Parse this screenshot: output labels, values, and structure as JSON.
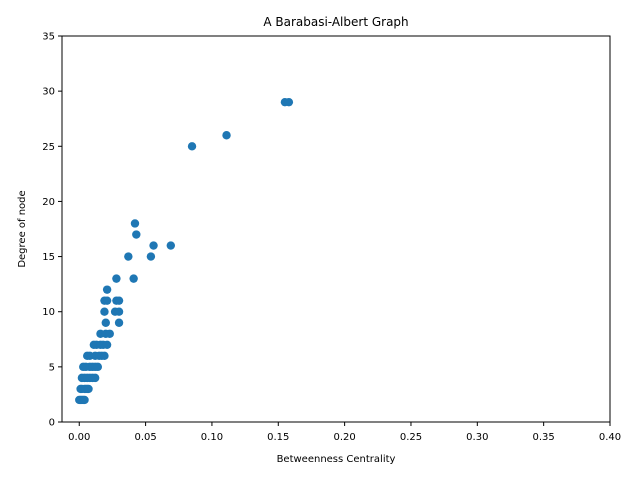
{
  "chart_data": {
    "type": "scatter",
    "title": "A Barabasi-Albert Graph",
    "xlabel": "Betweenness Centrality",
    "ylabel": "Degree of node",
    "xlim": [
      -0.013,
      0.4
    ],
    "ylim": [
      0,
      35
    ],
    "x_ticks": [
      0.0,
      0.05,
      0.1,
      0.15,
      0.2,
      0.25,
      0.3,
      0.35,
      0.4
    ],
    "x_tick_labels": [
      "0.00",
      "0.05",
      "0.10",
      "0.15",
      "0.20",
      "0.25",
      "0.30",
      "0.35",
      "0.40"
    ],
    "y_ticks": [
      0,
      5,
      10,
      15,
      20,
      25,
      30,
      35
    ],
    "y_tick_labels": [
      "0",
      "5",
      "10",
      "15",
      "20",
      "25",
      "30",
      "35"
    ],
    "grid": false,
    "marker_color": "#1f77b4",
    "series": [
      {
        "points": [
          {
            "x": 0.155,
            "y": 29
          },
          {
            "x": 0.158,
            "y": 29
          },
          {
            "x": 0.111,
            "y": 26
          },
          {
            "x": 0.085,
            "y": 25
          },
          {
            "x": 0.042,
            "y": 18
          },
          {
            "x": 0.043,
            "y": 17
          },
          {
            "x": 0.056,
            "y": 16
          },
          {
            "x": 0.069,
            "y": 16
          },
          {
            "x": 0.037,
            "y": 15
          },
          {
            "x": 0.054,
            "y": 15
          },
          {
            "x": 0.028,
            "y": 13
          },
          {
            "x": 0.041,
            "y": 13
          },
          {
            "x": 0.021,
            "y": 12
          },
          {
            "x": 0.019,
            "y": 11
          },
          {
            "x": 0.021,
            "y": 11
          },
          {
            "x": 0.028,
            "y": 11
          },
          {
            "x": 0.03,
            "y": 11
          },
          {
            "x": 0.019,
            "y": 10
          },
          {
            "x": 0.027,
            "y": 10
          },
          {
            "x": 0.03,
            "y": 10
          },
          {
            "x": 0.02,
            "y": 9
          },
          {
            "x": 0.03,
            "y": 9
          },
          {
            "x": 0.016,
            "y": 8
          },
          {
            "x": 0.02,
            "y": 8
          },
          {
            "x": 0.023,
            "y": 8
          },
          {
            "x": 0.011,
            "y": 7
          },
          {
            "x": 0.013,
            "y": 7
          },
          {
            "x": 0.016,
            "y": 7
          },
          {
            "x": 0.018,
            "y": 7
          },
          {
            "x": 0.021,
            "y": 7
          },
          {
            "x": 0.006,
            "y": 6
          },
          {
            "x": 0.008,
            "y": 6
          },
          {
            "x": 0.012,
            "y": 6
          },
          {
            "x": 0.015,
            "y": 6
          },
          {
            "x": 0.017,
            "y": 6
          },
          {
            "x": 0.019,
            "y": 6
          },
          {
            "x": 0.003,
            "y": 5
          },
          {
            "x": 0.005,
            "y": 5
          },
          {
            "x": 0.008,
            "y": 5
          },
          {
            "x": 0.01,
            "y": 5
          },
          {
            "x": 0.012,
            "y": 5
          },
          {
            "x": 0.014,
            "y": 5
          },
          {
            "x": 0.002,
            "y": 4
          },
          {
            "x": 0.004,
            "y": 4
          },
          {
            "x": 0.006,
            "y": 4
          },
          {
            "x": 0.008,
            "y": 4
          },
          {
            "x": 0.01,
            "y": 4
          },
          {
            "x": 0.012,
            "y": 4
          },
          {
            "x": 0.001,
            "y": 3
          },
          {
            "x": 0.002,
            "y": 3
          },
          {
            "x": 0.004,
            "y": 3
          },
          {
            "x": 0.005,
            "y": 3
          },
          {
            "x": 0.006,
            "y": 3
          },
          {
            "x": 0.007,
            "y": 3
          },
          {
            "x": 0.0,
            "y": 2
          },
          {
            "x": 0.001,
            "y": 2
          },
          {
            "x": 0.002,
            "y": 2
          },
          {
            "x": 0.003,
            "y": 2
          },
          {
            "x": 0.004,
            "y": 2
          }
        ]
      }
    ]
  }
}
